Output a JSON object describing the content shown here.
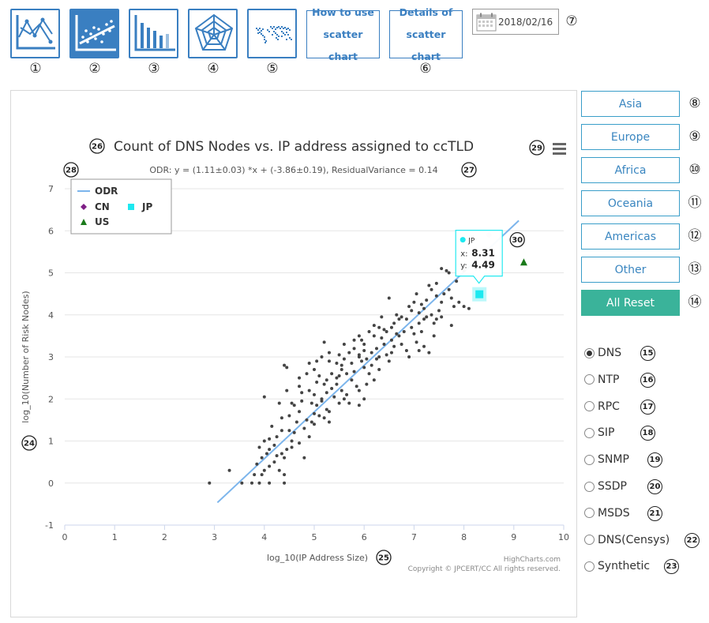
{
  "toolbar": {
    "icon_buttons": [
      {
        "name": "line-chart-icon",
        "number": "①",
        "active": false
      },
      {
        "name": "scatter-chart-icon",
        "number": "②",
        "active": true
      },
      {
        "name": "bar-chart-icon",
        "number": "③",
        "active": false
      },
      {
        "name": "radar-chart-icon",
        "number": "④",
        "active": false
      },
      {
        "name": "world-map-icon",
        "number": "⑤",
        "active": false
      }
    ],
    "how_to_use": {
      "line1": "How to use",
      "line2": "scatter chart"
    },
    "details": {
      "line1": "Details of",
      "line2": "scatter chart",
      "number": "⑥"
    },
    "date": "2018/02/16",
    "date_icon": "calendar-icon",
    "date_number": "⑦"
  },
  "regions": [
    {
      "label": "Asia",
      "number": "⑧"
    },
    {
      "label": "Europe",
      "number": "⑨"
    },
    {
      "label": "Africa",
      "number": "⑩"
    },
    {
      "label": "Oceania",
      "number": "⑪"
    },
    {
      "label": "Americas",
      "number": "⑫"
    },
    {
      "label": "Other",
      "number": "⑬"
    }
  ],
  "reset": {
    "label": "All Reset",
    "number": "⑭"
  },
  "protocols": [
    {
      "label": "DNS",
      "num": "15",
      "checked": true
    },
    {
      "label": "NTP",
      "num": "16",
      "checked": false
    },
    {
      "label": "RPC",
      "num": "17",
      "checked": false
    },
    {
      "label": "SIP",
      "num": "18",
      "checked": false
    },
    {
      "label": "SNMP",
      "num": "19",
      "checked": false
    },
    {
      "label": "SSDP",
      "num": "20",
      "checked": false
    },
    {
      "label": "MSDS",
      "num": "21",
      "checked": false
    },
    {
      "label": "DNS(Censys)",
      "num": "22",
      "checked": false
    },
    {
      "label": "Synthetic",
      "num": "23",
      "checked": false
    }
  ],
  "callouts": {
    "ylabel": "24",
    "xlabel": "25",
    "title": "26",
    "subtitle": "27",
    "legend": "28",
    "menu": "29",
    "tooltip": "30"
  },
  "credits": {
    "line1": "HighCharts.com",
    "line2": "Copyright © JPCERT/CC All rights reserved."
  },
  "colors": {
    "accent": "#3a7fc1",
    "reset": "#3ab39a",
    "regression": "#7cb5ec",
    "CN": "#7e1f86",
    "JP": "#1de9f0",
    "US": "#1b7a1b",
    "points": "#444444"
  },
  "tooltip": {
    "series": "JP",
    "x_label": "x:",
    "x_value": "8.31",
    "y_label": "y:",
    "y_value": "4.49"
  },
  "chart_data": {
    "type": "scatter",
    "title": "Count of DNS Nodes vs. IP address assigned to ccTLD",
    "subtitle": "ODR: y = (1.11±0.03) *x + (-3.86±0.19), ResidualVariance = 0.14",
    "xlabel": "log_10(IP Address Size)",
    "ylabel": "log_10(Number of Risk Nodes)",
    "xlim": [
      0,
      10
    ],
    "ylim": [
      -1,
      7
    ],
    "x_ticks": [
      0,
      1,
      2,
      3,
      4,
      5,
      6,
      7,
      8,
      9,
      10
    ],
    "y_ticks": [
      -1,
      0,
      1,
      2,
      3,
      4,
      5,
      6,
      7
    ],
    "grid": true,
    "legend_position": "top-left",
    "legend": [
      {
        "name": "ODR",
        "symbol": "line"
      },
      {
        "name": "CN",
        "symbol": "diamond"
      },
      {
        "name": "JP",
        "symbol": "square"
      },
      {
        "name": "US",
        "symbol": "triangle"
      }
    ],
    "regression": {
      "slope": 1.11,
      "intercept": -3.86,
      "x_range": [
        3.06,
        9.1
      ]
    },
    "highlight_points": [
      {
        "series": "CN",
        "x": 8.5,
        "y": 5.9
      },
      {
        "series": "JP",
        "x": 8.31,
        "y": 4.49
      },
      {
        "series": "US",
        "x": 9.2,
        "y": 5.25
      }
    ],
    "points": [
      [
        2.9,
        0
      ],
      [
        3.3,
        0.3
      ],
      [
        3.55,
        0
      ],
      [
        3.75,
        0
      ],
      [
        3.9,
        0
      ],
      [
        4.1,
        0
      ],
      [
        4.4,
        0
      ],
      [
        3.8,
        0.2
      ],
      [
        4.0,
        0.3
      ],
      [
        4.1,
        0.4
      ],
      [
        4.3,
        0.3
      ],
      [
        4.4,
        0.2
      ],
      [
        3.85,
        0.45
      ],
      [
        3.95,
        0.6
      ],
      [
        4.05,
        0.7
      ],
      [
        4.2,
        0.5
      ],
      [
        4.35,
        0.7
      ],
      [
        4.45,
        0.8
      ],
      [
        3.9,
        0.85
      ],
      [
        4.0,
        1.0
      ],
      [
        4.1,
        1.05
      ],
      [
        4.25,
        1.1
      ],
      [
        4.5,
        1.25
      ],
      [
        4.6,
        1.2
      ],
      [
        4.4,
        0.6
      ],
      [
        4.8,
        0.6
      ],
      [
        4.7,
        0.95
      ],
      [
        4.9,
        1.1
      ],
      [
        4.85,
        1.5
      ],
      [
        5.0,
        1.4
      ],
      [
        5.1,
        1.6
      ],
      [
        5.2,
        1.55
      ],
      [
        4.15,
        1.35
      ],
      [
        4.35,
        1.55
      ],
      [
        4.5,
        1.6
      ],
      [
        4.6,
        1.85
      ],
      [
        4.75,
        1.95
      ],
      [
        4.95,
        1.9
      ],
      [
        5.05,
        1.85
      ],
      [
        5.15,
        1.95
      ],
      [
        5.3,
        1.7
      ],
      [
        4.0,
        2.05
      ],
      [
        4.3,
        1.9
      ],
      [
        4.45,
        2.2
      ],
      [
        4.7,
        2.3
      ],
      [
        4.9,
        2.2
      ],
      [
        5.0,
        2.1
      ],
      [
        5.05,
        2.4
      ],
      [
        5.2,
        2.35
      ],
      [
        5.25,
        2.15
      ],
      [
        5.4,
        2.05
      ],
      [
        5.5,
        1.9
      ],
      [
        5.6,
        2.0
      ],
      [
        5.7,
        1.9
      ],
      [
        4.4,
        2.8
      ],
      [
        4.45,
        2.75
      ],
      [
        4.7,
        2.5
      ],
      [
        4.85,
        2.6
      ],
      [
        5.0,
        2.7
      ],
      [
        5.1,
        2.55
      ],
      [
        5.25,
        2.45
      ],
      [
        5.35,
        2.6
      ],
      [
        5.45,
        2.5
      ],
      [
        5.55,
        2.7
      ],
      [
        5.65,
        2.6
      ],
      [
        5.75,
        2.45
      ],
      [
        5.85,
        2.3
      ],
      [
        5.9,
        2.2
      ],
      [
        6.0,
        2.0
      ],
      [
        5.9,
        1.85
      ],
      [
        5.15,
        3.0
      ],
      [
        5.2,
        3.35
      ],
      [
        5.3,
        2.9
      ],
      [
        5.45,
        2.85
      ],
      [
        5.5,
        3.05
      ],
      [
        5.6,
        2.95
      ],
      [
        5.7,
        3.1
      ],
      [
        5.75,
        2.85
      ],
      [
        5.8,
        3.2
      ],
      [
        5.9,
        3.05
      ],
      [
        5.95,
        2.9
      ],
      [
        6.05,
        2.95
      ],
      [
        6.0,
        2.75
      ],
      [
        6.1,
        2.6
      ],
      [
        6.15,
        3.1
      ],
      [
        6.25,
        3.2
      ],
      [
        6.3,
        3.0
      ],
      [
        6.4,
        3.3
      ],
      [
        6.45,
        3.05
      ],
      [
        6.5,
        2.9
      ],
      [
        5.8,
        3.4
      ],
      [
        5.9,
        3.5
      ],
      [
        6.0,
        3.3
      ],
      [
        6.1,
        3.6
      ],
      [
        6.2,
        3.5
      ],
      [
        6.35,
        3.45
      ],
      [
        6.45,
        3.6
      ],
      [
        6.55,
        3.4
      ],
      [
        6.6,
        3.25
      ],
      [
        6.7,
        3.5
      ],
      [
        6.75,
        3.3
      ],
      [
        6.8,
        3.6
      ],
      [
        6.85,
        3.15
      ],
      [
        6.9,
        3.0
      ],
      [
        6.95,
        3.7
      ],
      [
        7.0,
        3.55
      ],
      [
        7.05,
        3.35
      ],
      [
        7.1,
        3.8
      ],
      [
        7.15,
        3.6
      ],
      [
        7.2,
        3.25
      ],
      [
        7.3,
        3.1
      ],
      [
        7.25,
        3.95
      ],
      [
        7.35,
        4.0
      ],
      [
        7.4,
        3.8
      ],
      [
        7.45,
        3.9
      ],
      [
        7.5,
        4.1
      ],
      [
        7.55,
        3.95
      ],
      [
        6.5,
        4.4
      ],
      [
        6.6,
        3.8
      ],
      [
        6.65,
        4.0
      ],
      [
        6.75,
        3.95
      ],
      [
        6.9,
        4.2
      ],
      [
        7.0,
        4.3
      ],
      [
        7.05,
        4.5
      ],
      [
        7.15,
        4.25
      ],
      [
        7.25,
        4.35
      ],
      [
        7.3,
        4.7
      ],
      [
        7.35,
        4.6
      ],
      [
        7.45,
        4.45
      ],
      [
        7.55,
        4.3
      ],
      [
        7.6,
        4.5
      ],
      [
        7.75,
        4.4
      ],
      [
        7.8,
        4.2
      ],
      [
        7.9,
        4.3
      ],
      [
        8.0,
        4.2
      ],
      [
        8.1,
        4.15
      ],
      [
        7.7,
        4.6
      ],
      [
        7.85,
        4.8
      ],
      [
        8.0,
        5.05
      ],
      [
        7.55,
        5.1
      ],
      [
        7.7,
        5.0
      ],
      [
        7.65,
        5.05
      ],
      [
        7.75,
        3.75
      ],
      [
        7.1,
        4.05
      ],
      [
        6.3,
        3.7
      ],
      [
        6.2,
        3.75
      ],
      [
        5.9,
        3.0
      ],
      [
        5.6,
        3.3
      ],
      [
        5.35,
        2.25
      ],
      [
        5.05,
        2.9
      ],
      [
        4.9,
        2.85
      ],
      [
        4.7,
        1.7
      ],
      [
        4.55,
        1.0
      ],
      [
        4.2,
        0.9
      ],
      [
        4.1,
        0.8
      ],
      [
        4.8,
        1.3
      ],
      [
        5.3,
        1.45
      ],
      [
        5.45,
        2.35
      ],
      [
        5.55,
        2.2
      ],
      [
        6.05,
        2.35
      ],
      [
        6.2,
        2.45
      ],
      [
        6.15,
        2.8
      ],
      [
        6.4,
        3.65
      ],
      [
        6.55,
        3.7
      ],
      [
        6.65,
        3.55
      ],
      [
        6.85,
        3.9
      ],
      [
        7.2,
        3.9
      ],
      [
        7.4,
        3.5
      ],
      [
        7.1,
        3.15
      ],
      [
        5.65,
        2.1
      ],
      [
        5.25,
        1.75
      ],
      [
        5.0,
        1.65
      ],
      [
        4.65,
        1.45
      ],
      [
        4.35,
        1.25
      ],
      [
        4.25,
        0.65
      ],
      [
        3.95,
        0.2
      ],
      [
        4.55,
        0.85
      ],
      [
        5.8,
        2.65
      ],
      [
        6.3,
        2.7
      ],
      [
        6.0,
        3.15
      ],
      [
        6.7,
        3.9
      ],
      [
        6.95,
        4.1
      ],
      [
        7.2,
        4.15
      ],
      [
        7.45,
        4.75
      ],
      [
        6.35,
        3.95
      ],
      [
        6.55,
        3.1
      ],
      [
        5.5,
        2.55
      ],
      [
        5.15,
        2.0
      ],
      [
        4.95,
        1.45
      ],
      [
        4.55,
        1.9
      ],
      [
        4.75,
        2.15
      ],
      [
        5.3,
        3.1
      ],
      [
        5.55,
        2.8
      ],
      [
        5.95,
        3.4
      ],
      [
        6.25,
        2.95
      ]
    ]
  }
}
